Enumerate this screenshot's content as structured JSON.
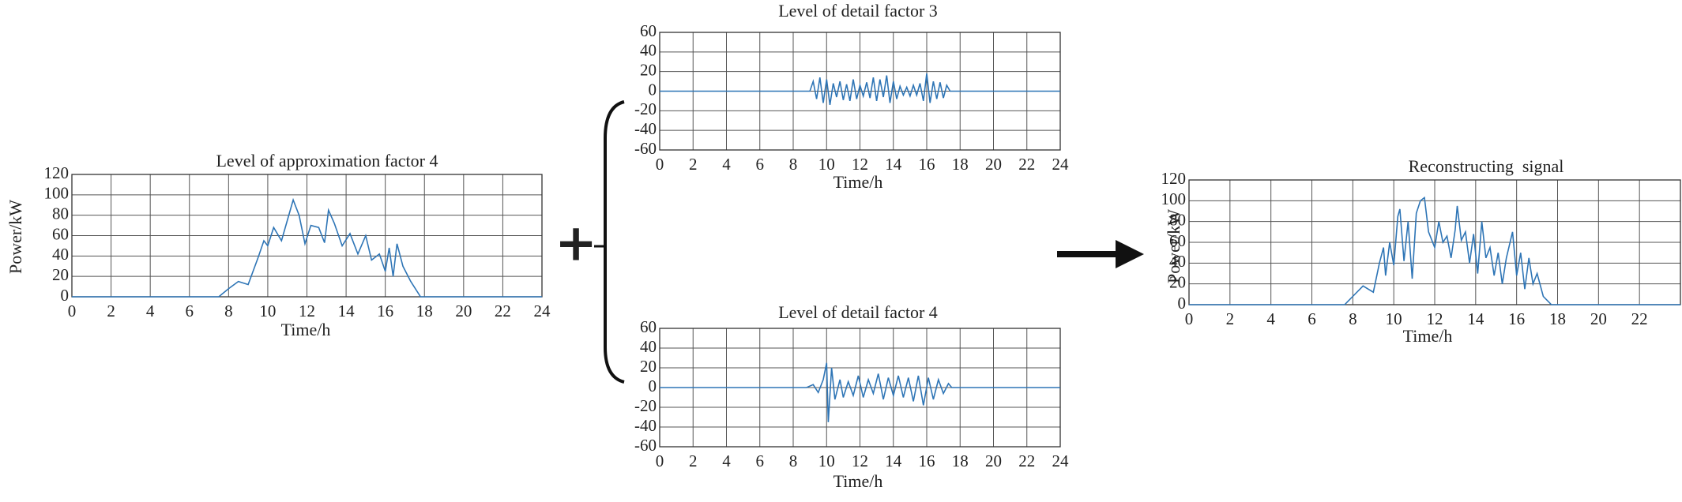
{
  "chart_data": [
    {
      "type": "line",
      "title": "Level of approximation factor 4",
      "x_label": "Time/h",
      "y_label": "Power/kW",
      "color": "#2e75b6",
      "grid": true,
      "xlim": [
        0,
        24
      ],
      "ylim": [
        0,
        120
      ],
      "xticks": [
        0,
        2,
        4,
        6,
        8,
        10,
        12,
        14,
        16,
        18,
        20,
        22,
        24
      ],
      "yticks": [
        0,
        20,
        40,
        60,
        80,
        100,
        120
      ],
      "x": [
        0,
        7.5,
        8,
        8.5,
        9,
        9.5,
        9.8,
        10,
        10.3,
        10.7,
        11,
        11.3,
        11.6,
        11.9,
        12.2,
        12.6,
        12.9,
        13.1,
        13.4,
        13.8,
        14.2,
        14.6,
        15,
        15.3,
        15.7,
        16,
        16.2,
        16.4,
        16.6,
        16.9,
        17.3,
        17.8,
        24
      ],
      "values": [
        0,
        0,
        8,
        15,
        12,
        38,
        55,
        50,
        68,
        55,
        75,
        95,
        80,
        52,
        70,
        68,
        53,
        85,
        72,
        50,
        62,
        42,
        60,
        36,
        42,
        25,
        48,
        20,
        52,
        30,
        15,
        0,
        0
      ]
    },
    {
      "type": "line",
      "title": "Level of detail factor 3",
      "x_label": "Time/h",
      "color": "#2e75b6",
      "grid": true,
      "xlim": [
        0,
        24
      ],
      "ylim": [
        -60,
        60
      ],
      "xticks": [
        0,
        2,
        4,
        6,
        8,
        10,
        12,
        14,
        16,
        18,
        20,
        22,
        24
      ],
      "yticks": [
        -60,
        -40,
        -20,
        0,
        20,
        40,
        60
      ],
      "x": [
        0,
        9,
        9.2,
        9.4,
        9.6,
        9.8,
        10,
        10.2,
        10.4,
        10.6,
        10.8,
        11,
        11.2,
        11.4,
        11.6,
        11.8,
        12,
        12.2,
        12.4,
        12.6,
        12.8,
        13,
        13.2,
        13.4,
        13.6,
        13.8,
        14,
        14.2,
        14.4,
        14.6,
        14.8,
        15,
        15.2,
        15.4,
        15.6,
        15.8,
        16,
        16.2,
        16.4,
        16.6,
        16.8,
        17,
        17.2,
        17.4,
        24
      ],
      "values": [
        0,
        0,
        10,
        -8,
        14,
        -12,
        12,
        -14,
        8,
        -6,
        10,
        -9,
        7,
        -10,
        12,
        -8,
        6,
        -5,
        9,
        -7,
        14,
        -10,
        12,
        -6,
        16,
        -12,
        10,
        -8,
        5,
        -4,
        4,
        -5,
        6,
        -4,
        8,
        -10,
        18,
        -12,
        10,
        -8,
        9,
        -7,
        6,
        0,
        0
      ]
    },
    {
      "type": "line",
      "title": "Level of detail factor 4",
      "x_label": "Time/h",
      "color": "#2e75b6",
      "grid": true,
      "xlim": [
        0,
        24
      ],
      "ylim": [
        -60,
        60
      ],
      "xticks": [
        0,
        2,
        4,
        6,
        8,
        10,
        12,
        14,
        16,
        18,
        20,
        22,
        24
      ],
      "yticks": [
        -60,
        -40,
        -20,
        0,
        20,
        40,
        60
      ],
      "x": [
        0,
        8.8,
        9.2,
        9.5,
        9.8,
        10,
        10.1,
        10.3,
        10.5,
        10.8,
        11,
        11.3,
        11.6,
        11.9,
        12.2,
        12.5,
        12.8,
        13.1,
        13.4,
        13.7,
        14,
        14.3,
        14.6,
        14.9,
        15.2,
        15.5,
        15.8,
        16.1,
        16.4,
        16.7,
        17,
        17.3,
        17.5,
        24
      ],
      "values": [
        0,
        0,
        3,
        -5,
        8,
        25,
        -35,
        20,
        -12,
        8,
        -10,
        6,
        -8,
        12,
        -10,
        8,
        -6,
        14,
        -12,
        10,
        -8,
        12,
        -10,
        10,
        -14,
        12,
        -18,
        10,
        -12,
        8,
        -6,
        4,
        0,
        0
      ]
    },
    {
      "type": "line",
      "title": "Reconstructing  signal",
      "x_label": "Time/h",
      "y_label": "Power/kW",
      "color": "#2e75b6",
      "grid": true,
      "xlim": [
        0,
        24
      ],
      "ylim": [
        0,
        120
      ],
      "xticks": [
        0,
        2,
        4,
        6,
        8,
        10,
        12,
        14,
        16,
        18,
        20,
        22
      ],
      "yticks": [
        0,
        20,
        40,
        60,
        80,
        100,
        120
      ],
      "x": [
        0,
        7.6,
        8,
        8.5,
        9,
        9.3,
        9.5,
        9.6,
        9.8,
        10,
        10.2,
        10.3,
        10.5,
        10.7,
        10.9,
        11.1,
        11.3,
        11.5,
        11.7,
        11.9,
        12,
        12.2,
        12.4,
        12.6,
        12.8,
        13,
        13.1,
        13.3,
        13.5,
        13.7,
        13.9,
        14.1,
        14.3,
        14.5,
        14.7,
        14.9,
        15.1,
        15.3,
        15.5,
        15.8,
        16,
        16.2,
        16.4,
        16.6,
        16.8,
        17,
        17.3,
        17.7,
        24
      ],
      "values": [
        0,
        0,
        8,
        18,
        12,
        40,
        55,
        28,
        60,
        38,
        85,
        92,
        42,
        80,
        25,
        88,
        100,
        103,
        70,
        60,
        55,
        80,
        60,
        66,
        45,
        72,
        95,
        62,
        70,
        40,
        68,
        30,
        80,
        45,
        55,
        28,
        50,
        20,
        45,
        70,
        28,
        50,
        15,
        45,
        20,
        30,
        8,
        0,
        0
      ]
    }
  ]
}
